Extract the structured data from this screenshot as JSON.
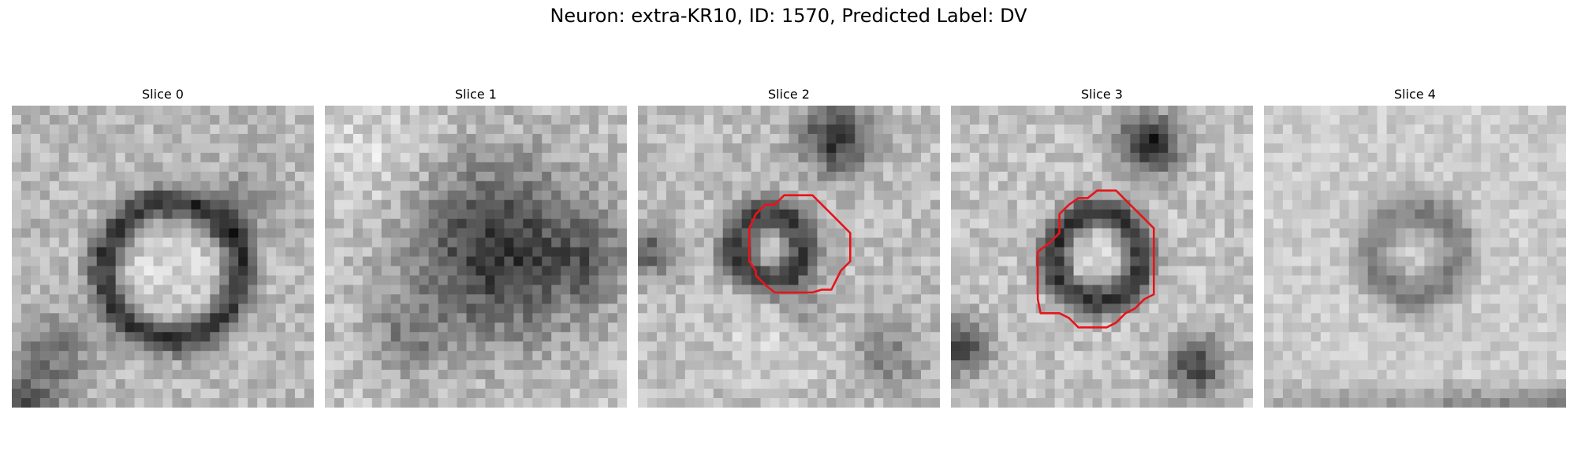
{
  "figure": {
    "suptitle": "Neuron: extra-KR10, ID: 1570, Predicted Label: DV",
    "contour_color": "#e8141a"
  },
  "slices": [
    {
      "title": "Slice 0",
      "has_contour": false
    },
    {
      "title": "Slice 1",
      "has_contour": false
    },
    {
      "title": "Slice 2",
      "has_contour": true
    },
    {
      "title": "Slice 3",
      "has_contour": true
    },
    {
      "title": "Slice 4",
      "has_contour": false
    }
  ]
}
